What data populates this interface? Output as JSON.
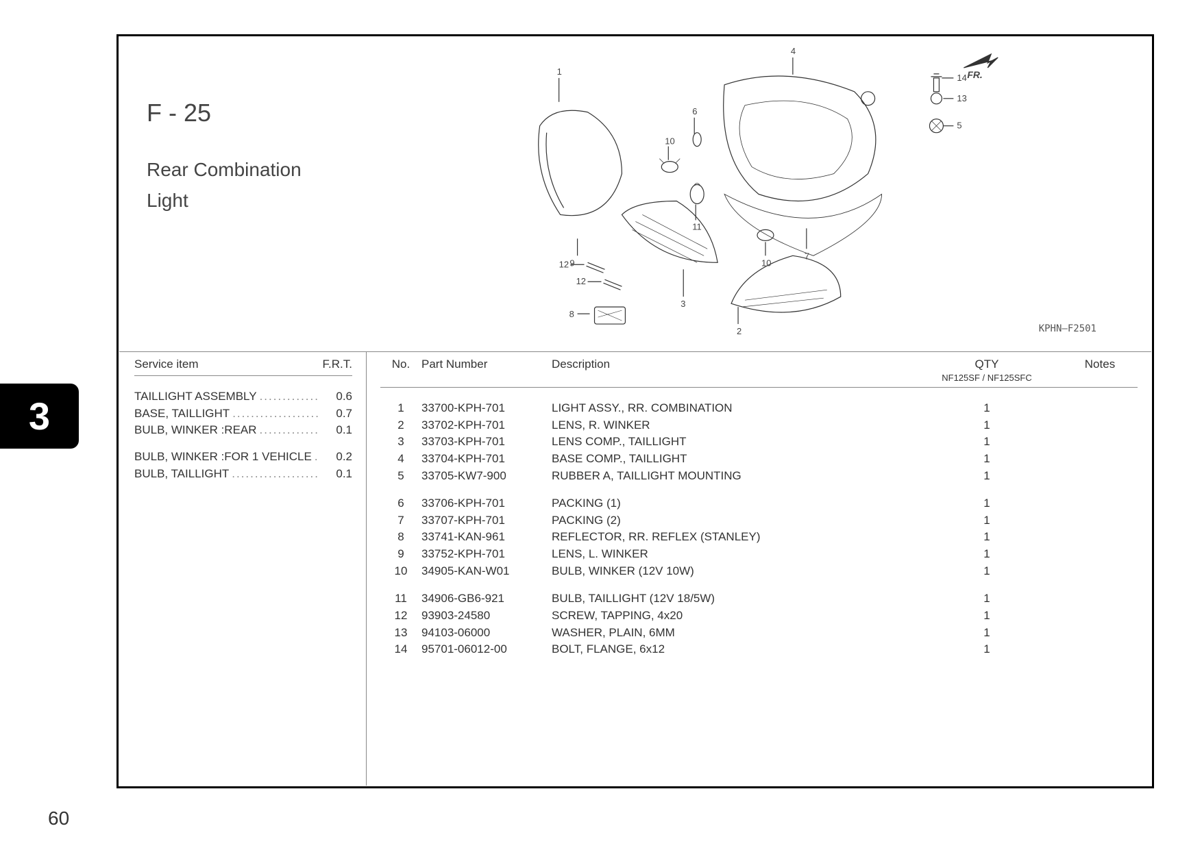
{
  "section_number": "3",
  "page_number": "60",
  "figure": {
    "code": "F - 25",
    "title_line1": "Rear Combination",
    "title_line2": "Light",
    "diagram_ref": "KPHN—F2501",
    "fr_label": "FR.",
    "callouts": {
      "c1": "1",
      "c2": "2",
      "c3": "3",
      "c4": "4",
      "c5": "5",
      "c6": "6",
      "c7": "7",
      "c8": "8",
      "c9": "9",
      "c10a": "10",
      "c10b": "10",
      "c11": "11",
      "c12a": "12",
      "c12b": "12",
      "c13": "13",
      "c14": "14"
    }
  },
  "service": {
    "header_item": "Service item",
    "header_frt": "F.R.T.",
    "rows_a": [
      {
        "label": "TAILLIGHT ASSEMBLY",
        "frt": "0.6"
      },
      {
        "label": "BASE, TAILLIGHT",
        "frt": "0.7"
      },
      {
        "label": "BULB, WINKER :REAR",
        "frt": "0.1"
      }
    ],
    "rows_b": [
      {
        "label": "BULB, WINKER :FOR 1 VEHICLE",
        "frt": "0.2"
      },
      {
        "label": "BULB, TAILLIGHT",
        "frt": "0.1"
      }
    ]
  },
  "parts": {
    "header_no": "No.",
    "header_pn": "Part Number",
    "header_desc": "Description",
    "header_qty": "QTY",
    "header_qty_sub": "NF125SF / NF125SFC",
    "header_notes": "Notes",
    "groups": [
      [
        {
          "no": "1",
          "pn": "33700-KPH-701",
          "desc": "LIGHT ASSY., RR. COMBINATION",
          "qty": "1"
        },
        {
          "no": "2",
          "pn": "33702-KPH-701",
          "desc": "LENS, R. WINKER",
          "qty": "1"
        },
        {
          "no": "3",
          "pn": "33703-KPH-701",
          "desc": "LENS COMP., TAILLIGHT",
          "qty": "1"
        },
        {
          "no": "4",
          "pn": "33704-KPH-701",
          "desc": "BASE COMP., TAILLIGHT",
          "qty": "1"
        },
        {
          "no": "5",
          "pn": "33705-KW7-900",
          "desc": "RUBBER A, TAILLIGHT MOUNTING",
          "qty": "1"
        }
      ],
      [
        {
          "no": "6",
          "pn": "33706-KPH-701",
          "desc": "PACKING (1)",
          "qty": "1"
        },
        {
          "no": "7",
          "pn": "33707-KPH-701",
          "desc": "PACKING (2)",
          "qty": "1"
        },
        {
          "no": "8",
          "pn": "33741-KAN-961",
          "desc": "REFLECTOR, RR. REFLEX  (STANLEY)",
          "qty": "1"
        },
        {
          "no": "9",
          "pn": "33752-KPH-701",
          "desc": "LENS, L. WINKER",
          "qty": "1"
        },
        {
          "no": "10",
          "pn": "34905-KAN-W01",
          "desc": "BULB, WINKER (12V 10W)",
          "qty": "1"
        }
      ],
      [
        {
          "no": "11",
          "pn": "34906-GB6-921",
          "desc": "BULB, TAILLIGHT (12V 18/5W)",
          "qty": "1"
        },
        {
          "no": "12",
          "pn": "93903-24580",
          "desc": "SCREW, TAPPING, 4x20",
          "qty": "1"
        },
        {
          "no": "13",
          "pn": "94103-06000",
          "desc": "WASHER, PLAIN, 6MM",
          "qty": "1"
        },
        {
          "no": "14",
          "pn": "95701-06012-00",
          "desc": "BOLT, FLANGE, 6x12",
          "qty": "1"
        }
      ]
    ]
  }
}
